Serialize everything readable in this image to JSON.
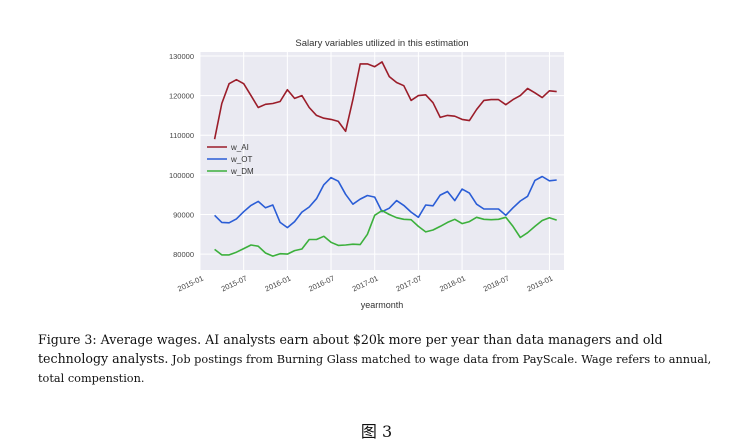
{
  "chart_data": {
    "type": "line",
    "title": "Salary variables utilized in this estimation",
    "xlabel": "yearmonth",
    "ylabel": "",
    "xlim": [
      0,
      50
    ],
    "ylim": [
      76000,
      131000
    ],
    "yticks": [
      80000,
      90000,
      100000,
      110000,
      120000,
      130000
    ],
    "ytick_labels": [
      "80000",
      "90000",
      "100000",
      "110000",
      "120000",
      "130000"
    ],
    "xticks": [
      0,
      6,
      12,
      18,
      24,
      30,
      36,
      42,
      48
    ],
    "xtick_labels": [
      "2015-01",
      "2015-07",
      "2016-01",
      "2016-07",
      "2017-01",
      "2017-07",
      "2018-01",
      "2018-07",
      "2019-01"
    ],
    "grid": true,
    "legend": "center-left",
    "x": [
      2,
      3,
      4,
      5,
      6,
      7,
      8,
      9,
      10,
      11,
      12,
      13,
      14,
      15,
      16,
      17,
      18,
      19,
      20,
      21,
      22,
      23,
      24,
      25,
      26,
      27,
      28,
      29,
      30,
      31,
      32,
      33,
      34,
      35,
      36,
      37,
      38,
      39,
      40,
      41,
      42,
      43,
      44,
      45,
      46,
      47,
      48,
      49
    ],
    "series": [
      {
        "name": "w_AI",
        "color": "#9b1d2a",
        "values": [
          109000,
          118000,
          123000,
          124000,
          123000,
          120000,
          117000,
          117800,
          118000,
          118500,
          121500,
          119300,
          120000,
          117000,
          115000,
          114300,
          114000,
          113500,
          111000,
          119000,
          128000,
          128000,
          127300,
          128500,
          124800,
          123300,
          122500,
          118800,
          120000,
          120200,
          118200,
          114500,
          115000,
          114800,
          114000,
          113700,
          116500,
          118800,
          119000,
          119000,
          117700,
          119000,
          120000,
          121800,
          120700,
          119500,
          121200,
          121000
        ]
      },
      {
        "name": "w_OT",
        "color": "#2a5dd6",
        "values": [
          89800,
          88000,
          87900,
          88900,
          90700,
          92300,
          93300,
          91700,
          92400,
          88000,
          86700,
          88200,
          90600,
          91900,
          94000,
          97500,
          99300,
          98400,
          95100,
          92600,
          93900,
          94800,
          94400,
          90700,
          91600,
          93500,
          92300,
          90600,
          89300,
          92400,
          92200,
          94900,
          95800,
          93500,
          96400,
          95400,
          92600,
          91400,
          91400,
          91400,
          89800,
          91700,
          93400,
          94600,
          98600,
          99600,
          98500,
          98700
        ]
      },
      {
        "name": "w_DM",
        "color": "#3cb03c",
        "values": [
          81200,
          79800,
          79800,
          80500,
          81400,
          82300,
          82000,
          80300,
          79500,
          80100,
          80000,
          80900,
          81300,
          83700,
          83700,
          84500,
          83000,
          82200,
          82300,
          82500,
          82400,
          85000,
          89800,
          91000,
          90000,
          89200,
          88800,
          88700,
          87000,
          85600,
          86100,
          87000,
          88000,
          88800,
          87700,
          88200,
          89300,
          88800,
          88700,
          88800,
          89300,
          87000,
          84200,
          85400,
          87000,
          88500,
          89200,
          88600
        ]
      }
    ]
  },
  "caption": {
    "lead": "Figure 3: Average wages. AI analysts earn about $20k more per year than data managers and old technology analysts.",
    "rest": " Job postings from Burning Glass matched to wage data from PayScale. Wage refers to annual, total compenstion."
  },
  "figure_label": "图 3"
}
